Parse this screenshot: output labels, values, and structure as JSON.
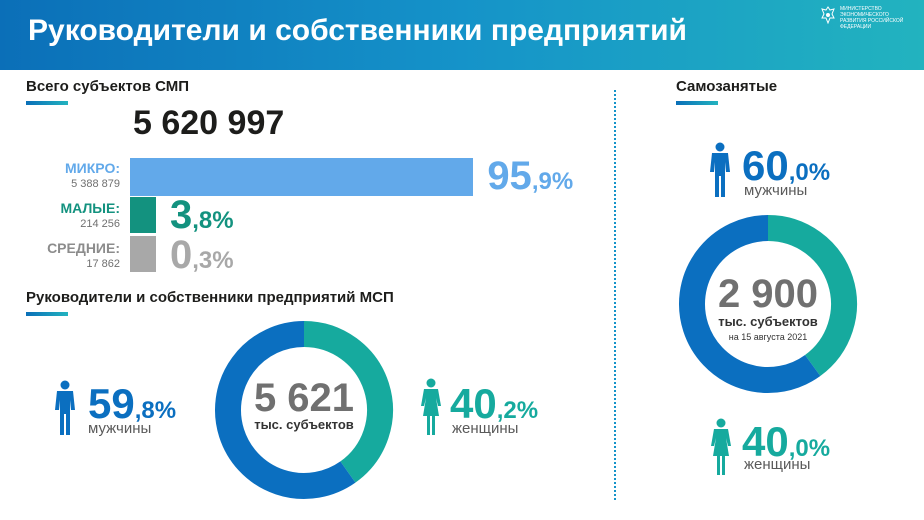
{
  "header": {
    "title": "Руководители и собственники предприятий",
    "ministry_text": "МИНИСТЕРСТВО ЭКОНОМИЧЕСКОГО РАЗВИТИЯ РОССИЙСКОЙ ФЕДЕРАЦИИ"
  },
  "smp": {
    "title": "Всего субъектов СМП",
    "total": "5 620 997",
    "categories": [
      {
        "name": "МИКРО:",
        "count": "5 388 879",
        "pct_int": "95",
        "pct_dec": ",9%",
        "color": "#62a9ea"
      },
      {
        "name": "МАЛЫЕ:",
        "count": "214 256",
        "pct_int": "3",
        "pct_dec": ",8%",
        "color": "#13927f"
      },
      {
        "name": "СРЕДНИЕ:",
        "count": "17 862",
        "pct_int": "0",
        "pct_dec": ",3%",
        "color": "#a8a8a8"
      }
    ]
  },
  "msp_leaders": {
    "title": "Руководители и собственники предприятий МСП",
    "center_value": "5 621",
    "center_unit": "тыс. субъектов",
    "men": {
      "pct_int": "59",
      "pct_dec": ",8%",
      "label": "мужчины"
    },
    "women": {
      "pct_int": "40",
      "pct_dec": ",2%",
      "label": "женщины"
    }
  },
  "self_employed": {
    "title": "Самозанятые",
    "center_value": "2 900",
    "center_unit": "тыс. субъектов",
    "center_date": "на 15 августа 2021",
    "men": {
      "pct_int": "60",
      "pct_dec": ",0%",
      "label": "мужчины"
    },
    "women": {
      "pct_int": "40",
      "pct_dec": ",0%",
      "label": "женщины"
    }
  },
  "chart_data": [
    {
      "type": "bar",
      "title": "Всего субъектов СМП",
      "categories": [
        "МИКРО:",
        "МАЛЫЕ:",
        "СРЕДНИЕ:"
      ],
      "values": [
        95.9,
        3.8,
        0.3
      ],
      "counts": [
        5388879,
        214256,
        17862
      ],
      "total": 5620997
    },
    {
      "type": "pie",
      "title": "Руководители и собственники предприятий МСП",
      "categories": [
        "мужчины",
        "женщины"
      ],
      "values": [
        59.8,
        40.2
      ],
      "colors": [
        "#0b6fc0",
        "#16aa9e"
      ]
    },
    {
      "type": "pie",
      "title": "Самозанятые",
      "categories": [
        "мужчины",
        "женщины"
      ],
      "values": [
        60.0,
        40.0
      ],
      "colors": [
        "#0b6fc0",
        "#16aa9e"
      ]
    }
  ],
  "colors": {
    "blue": "#0b6fc0",
    "teal": "#16aa9e",
    "light_blue": "#62a9ea",
    "green": "#13927f",
    "gray": "#a8a8a8"
  }
}
